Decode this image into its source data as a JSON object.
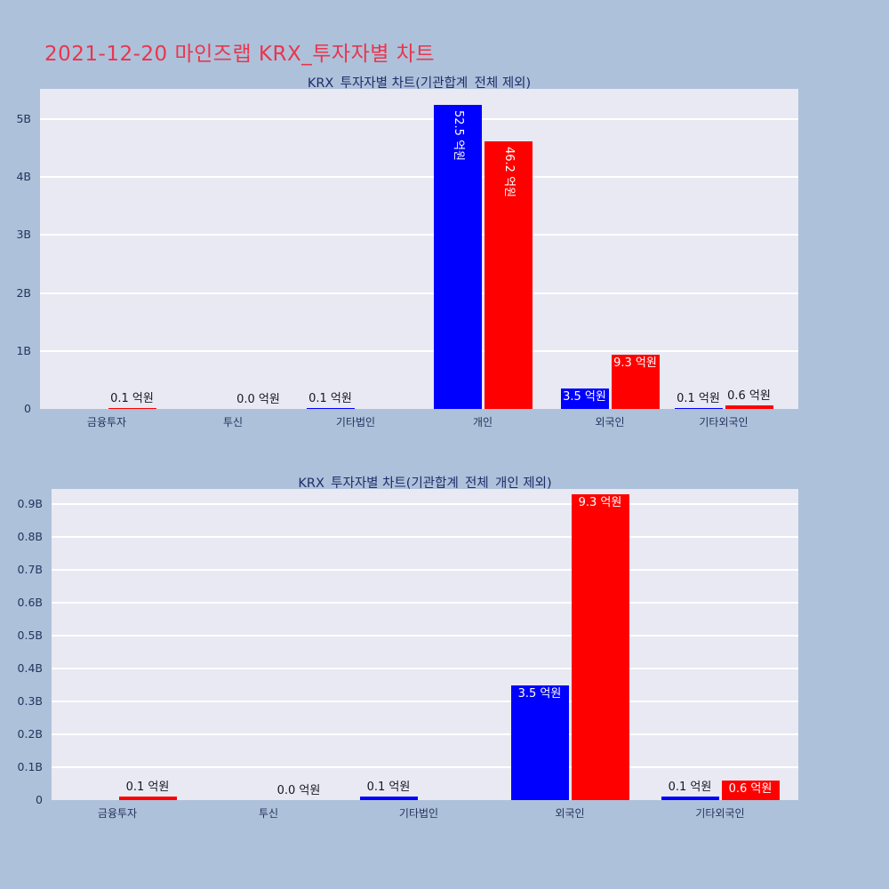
{
  "page_title": "2021-12-20 마인즈랩 KRX_투자자별 차트",
  "colors": {
    "page_bg": "#aec1da",
    "plot_bg": "#e8e9f3",
    "grid": "#ffffff",
    "bar_blue": "#0000ff",
    "bar_red": "#ff0000",
    "page_title": "#e8364e",
    "chart_title": "#1d2d69",
    "axis_text": "#25335e",
    "value_label_dark": "#17171f",
    "value_label_light": "#ffffff"
  },
  "chart_data": [
    {
      "type": "bar",
      "title": "KRX_투자자별 차트(기관합계_전체 제외)",
      "value_unit": "억원",
      "y_axis": {
        "tick_values_B": [
          0,
          1,
          2,
          3,
          4,
          5
        ],
        "tick_labels": [
          "0",
          "1B",
          "2B",
          "3B",
          "4B",
          "5B"
        ],
        "ylim_B": [
          0,
          5.5
        ]
      },
      "categories": [
        "금융투자",
        "투신",
        "기타법인",
        "개인",
        "외국인",
        "기타외국인"
      ],
      "groups": [
        {
          "category": "금융투자",
          "bars": [
            {
              "series": "blue",
              "value": 0.0,
              "label": null,
              "label_mode": "none"
            },
            {
              "series": "red",
              "value": 0.1,
              "label": "0.1 억원",
              "label_mode": "above"
            }
          ]
        },
        {
          "category": "투신",
          "bars": [
            {
              "series": "blue",
              "value": 0.0,
              "label": null,
              "label_mode": "none"
            },
            {
              "series": "red",
              "value": 0.0,
              "label": "0.0 억원",
              "label_mode": "above"
            }
          ]
        },
        {
          "category": "기타법인",
          "bars": [
            {
              "series": "blue",
              "value": 0.1,
              "label": "0.1 억원",
              "label_mode": "above"
            },
            {
              "series": "red",
              "value": 0.0,
              "label": null,
              "label_mode": "none"
            }
          ]
        },
        {
          "category": "개인",
          "bars": [
            {
              "series": "blue",
              "value": 52.5,
              "label": "52.5 억원",
              "label_mode": "inside-vertical"
            },
            {
              "series": "red",
              "value": 46.2,
              "label": "46.2 억원",
              "label_mode": "inside-vertical"
            }
          ]
        },
        {
          "category": "외국인",
          "bars": [
            {
              "series": "blue",
              "value": 3.5,
              "label": "3.5 억원",
              "label_mode": "inside-top"
            },
            {
              "series": "red",
              "value": 9.3,
              "label": "9.3 억원",
              "label_mode": "inside-top"
            }
          ]
        },
        {
          "category": "기타외국인",
          "bars": [
            {
              "series": "blue",
              "value": 0.1,
              "label": "0.1 억원",
              "label_mode": "above"
            },
            {
              "series": "red",
              "value": 0.6,
              "label": "0.6 억원",
              "label_mode": "above"
            }
          ]
        }
      ]
    },
    {
      "type": "bar",
      "title": "KRX_투자자별 차트(기관합계_전체_개인 제외)",
      "value_unit": "억원",
      "y_axis": {
        "tick_values_B": [
          0,
          0.1,
          0.2,
          0.3,
          0.4,
          0.5,
          0.6,
          0.7,
          0.8,
          0.9
        ],
        "tick_labels": [
          "0",
          "0.1B",
          "0.2B",
          "0.3B",
          "0.4B",
          "0.5B",
          "0.6B",
          "0.7B",
          "0.8B",
          "0.9B"
        ],
        "ylim_B": [
          0,
          0.95
        ]
      },
      "categories": [
        "금융투자",
        "투신",
        "기타법인",
        "외국인",
        "기타외국인"
      ],
      "groups": [
        {
          "category": "금융투자",
          "bars": [
            {
              "series": "blue",
              "value": 0.0,
              "label": null,
              "label_mode": "none"
            },
            {
              "series": "red",
              "value": 0.1,
              "label": "0.1 억원",
              "label_mode": "above"
            }
          ]
        },
        {
          "category": "투신",
          "bars": [
            {
              "series": "blue",
              "value": 0.0,
              "label": null,
              "label_mode": "none"
            },
            {
              "series": "red",
              "value": 0.0,
              "label": "0.0 억원",
              "label_mode": "above"
            }
          ]
        },
        {
          "category": "기타법인",
          "bars": [
            {
              "series": "blue",
              "value": 0.1,
              "label": "0.1 억원",
              "label_mode": "above"
            },
            {
              "series": "red",
              "value": 0.0,
              "label": null,
              "label_mode": "none"
            }
          ]
        },
        {
          "category": "외국인",
          "bars": [
            {
              "series": "blue",
              "value": 3.5,
              "label": "3.5 억원",
              "label_mode": "inside-top"
            },
            {
              "series": "red",
              "value": 9.3,
              "label": "9.3 억원",
              "label_mode": "inside-top"
            }
          ]
        },
        {
          "category": "기타외국인",
          "bars": [
            {
              "series": "blue",
              "value": 0.1,
              "label": "0.1 억원",
              "label_mode": "above"
            },
            {
              "series": "red",
              "value": 0.6,
              "label": "0.6 억원",
              "label_mode": "inside-top"
            }
          ]
        }
      ]
    }
  ]
}
